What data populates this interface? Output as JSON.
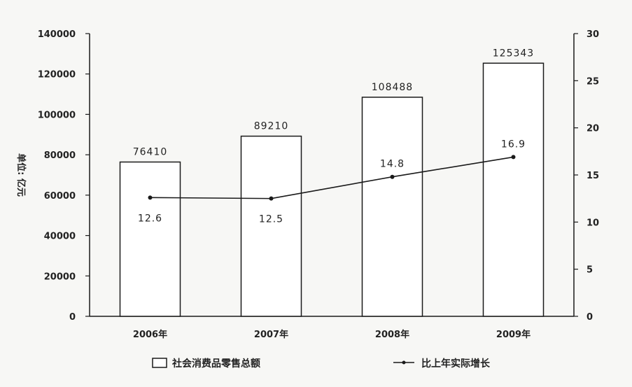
{
  "chart_data": {
    "type": "bar",
    "categories": [
      "2006年",
      "2007年",
      "2008年",
      "2009年"
    ],
    "series": [
      {
        "name": "社会消费品零售总额",
        "type": "bar",
        "axis": "left",
        "values": [
          76410,
          89210,
          108488,
          125343
        ],
        "labels": [
          "76410",
          "89210",
          "108488",
          "125343"
        ]
      },
      {
        "name": "比上年实际增长",
        "type": "line",
        "axis": "right",
        "values": [
          12.6,
          12.5,
          14.8,
          16.9
        ],
        "labels": [
          "12.6",
          "12.5",
          "14.8",
          "16.9"
        ]
      }
    ],
    "ylabel": "单位: 亿元",
    "ylim": [
      0,
      140000
    ],
    "y2lim": [
      0,
      30
    ],
    "yticks": [
      "0",
      "20000",
      "40000",
      "60000",
      "80000",
      "100000",
      "120000",
      "140000"
    ],
    "y2ticks": [
      "0",
      "5",
      "10",
      "15",
      "20",
      "25",
      "30"
    ],
    "legend": {
      "placement": "bottom",
      "items": [
        "社会消费品零售总额",
        "比上年实际增长"
      ]
    },
    "grid": false,
    "colors": {
      "bar_fill": "#ffffff",
      "stroke": "#1a1a1a",
      "background": "#f7f7f5"
    }
  }
}
